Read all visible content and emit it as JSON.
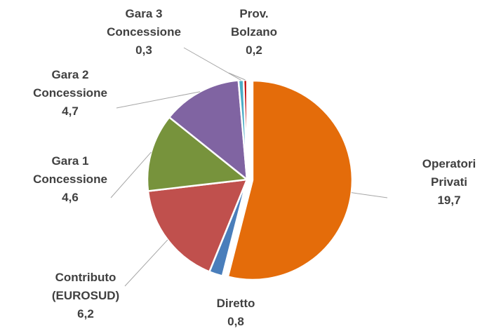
{
  "chart_data": {
    "type": "pie",
    "categories": [
      "Operatori Privati",
      "Diretto",
      "Contributo (EUROSUD)",
      "Gara 1 Concessione",
      "Gara 2 Concessione",
      "Gara 3 Concessione",
      "Prov. Bolzano"
    ],
    "values": [
      19.7,
      0.8,
      6.2,
      4.6,
      4.7,
      0.3,
      0.2
    ],
    "value_labels": [
      "19,7",
      "0,8",
      "6,2",
      "4,6",
      "4,7",
      "0,3",
      "0,2"
    ],
    "colors": [
      "#E46C0A",
      "#4A7EBB",
      "#C0504D",
      "#77933C",
      "#8064A2",
      "#4BACC6",
      "#C00000"
    ]
  }
}
